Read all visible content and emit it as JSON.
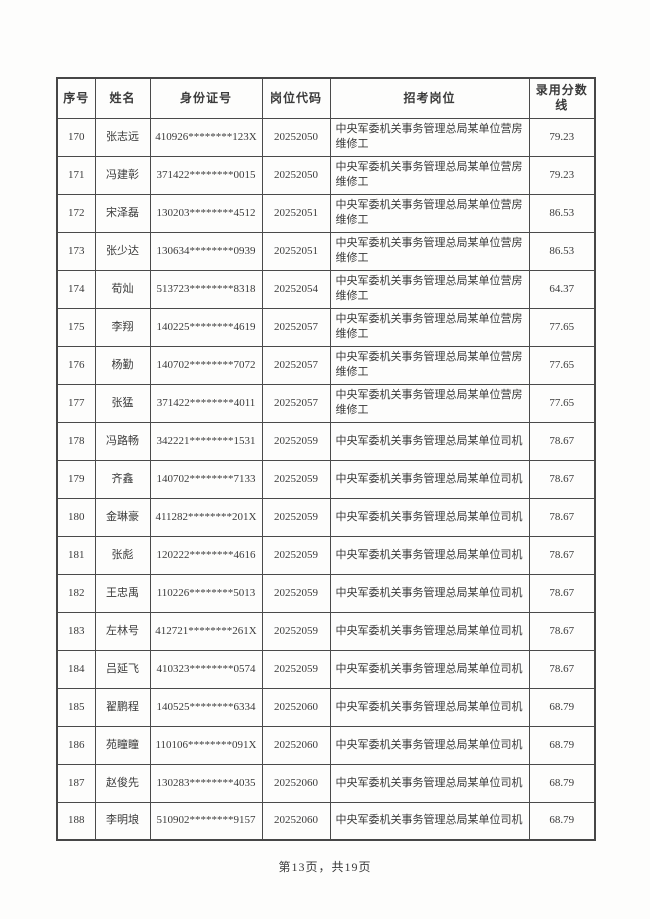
{
  "document": {
    "footer": "第13页，共19页"
  },
  "table": {
    "headers": [
      "序号",
      "姓名",
      "身份证号",
      "岗位代码",
      "招考岗位",
      "录用分数线"
    ],
    "rows": [
      [
        "170",
        "张志远",
        "410926********123X",
        "20252050",
        "中央军委机关事务管理总局某单位营房维修工",
        "79.23"
      ],
      [
        "171",
        "冯建彰",
        "371422********0015",
        "20252050",
        "中央军委机关事务管理总局某单位营房维修工",
        "79.23"
      ],
      [
        "172",
        "宋泽磊",
        "130203********4512",
        "20252051",
        "中央军委机关事务管理总局某单位营房维修工",
        "86.53"
      ],
      [
        "173",
        "张少达",
        "130634********0939",
        "20252051",
        "中央军委机关事务管理总局某单位营房维修工",
        "86.53"
      ],
      [
        "174",
        "荀灿",
        "513723********8318",
        "20252054",
        "中央军委机关事务管理总局某单位营房维修工",
        "64.37"
      ],
      [
        "175",
        "李翔",
        "140225********4619",
        "20252057",
        "中央军委机关事务管理总局某单位营房维修工",
        "77.65"
      ],
      [
        "176",
        "杨勤",
        "140702********7072",
        "20252057",
        "中央军委机关事务管理总局某单位营房维修工",
        "77.65"
      ],
      [
        "177",
        "张猛",
        "371422********4011",
        "20252057",
        "中央军委机关事务管理总局某单位营房维修工",
        "77.65"
      ],
      [
        "178",
        "冯路畅",
        "342221********1531",
        "20252059",
        "中央军委机关事务管理总局某单位司机",
        "78.67"
      ],
      [
        "179",
        "齐鑫",
        "140702********7133",
        "20252059",
        "中央军委机关事务管理总局某单位司机",
        "78.67"
      ],
      [
        "180",
        "金琳豪",
        "411282********201X",
        "20252059",
        "中央军委机关事务管理总局某单位司机",
        "78.67"
      ],
      [
        "181",
        "张彪",
        "120222********4616",
        "20252059",
        "中央军委机关事务管理总局某单位司机",
        "78.67"
      ],
      [
        "182",
        "王忠禹",
        "110226********5013",
        "20252059",
        "中央军委机关事务管理总局某单位司机",
        "78.67"
      ],
      [
        "183",
        "左林号",
        "412721********261X",
        "20252059",
        "中央军委机关事务管理总局某单位司机",
        "78.67"
      ],
      [
        "184",
        "吕延飞",
        "410323********0574",
        "20252059",
        "中央军委机关事务管理总局某单位司机",
        "78.67"
      ],
      [
        "185",
        "翟鹏程",
        "140525********6334",
        "20252060",
        "中央军委机关事务管理总局某单位司机",
        "68.79"
      ],
      [
        "186",
        "苑瞳瞳",
        "110106********091X",
        "20252060",
        "中央军委机关事务管理总局某单位司机",
        "68.79"
      ],
      [
        "187",
        "赵俊先",
        "130283********4035",
        "20252060",
        "中央军委机关事务管理总局某单位司机",
        "68.79"
      ],
      [
        "188",
        "李明埌",
        "510902********9157",
        "20252060",
        "中央军委机关事务管理总局某单位司机",
        "68.79"
      ]
    ]
  },
  "colors": {
    "border": "#4a4a4a",
    "text": "#3a3a3a",
    "background": "#fdfdfc"
  }
}
